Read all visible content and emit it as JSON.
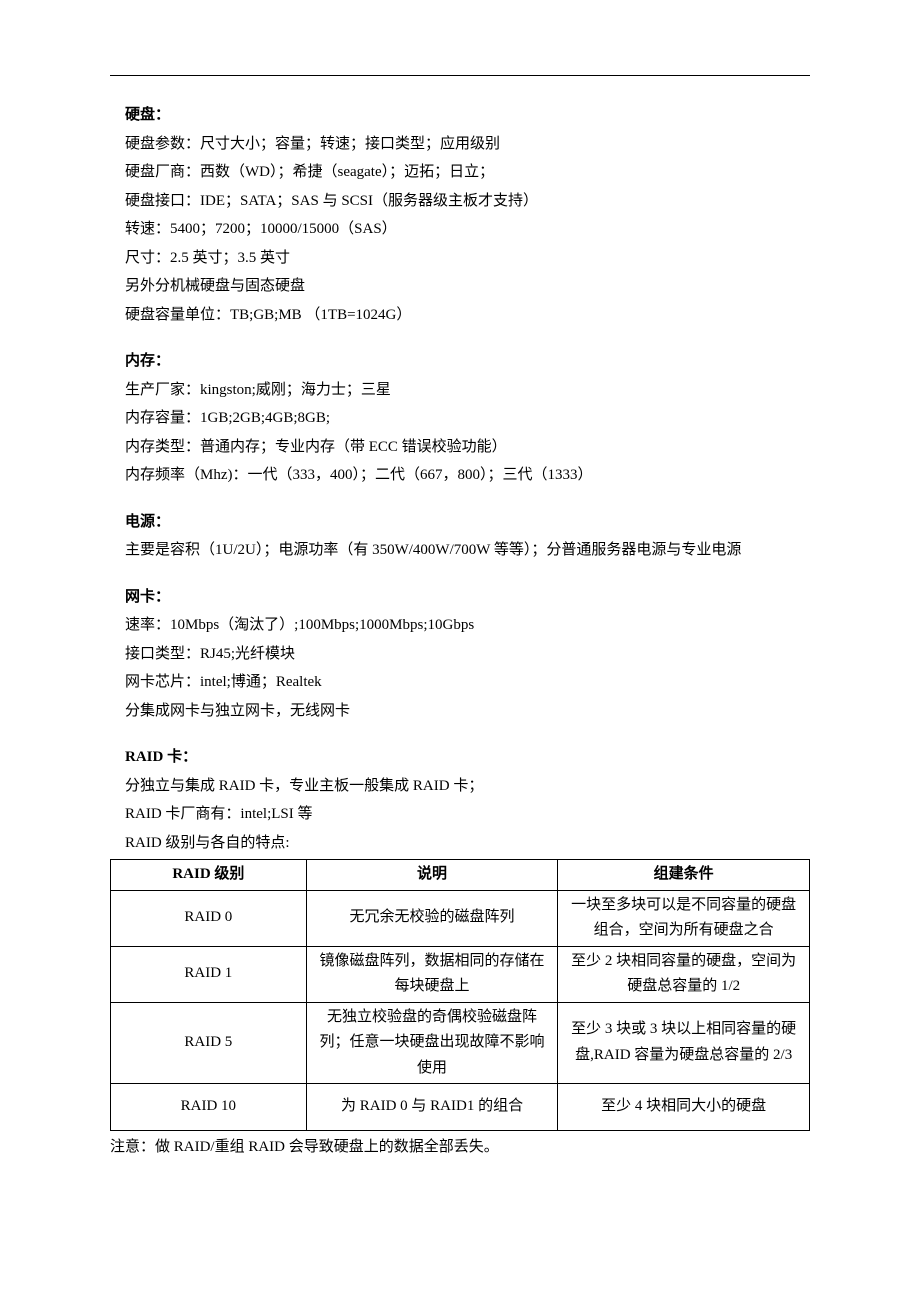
{
  "sections": {
    "disk": {
      "title": "硬盘：",
      "lines": [
        "硬盘参数：尺寸大小；容量；转速；接口类型；应用级别",
        "硬盘厂商：西数（WD）；希捷（seagate）；迈拓；日立；",
        "硬盘接口：IDE；SATA；SAS 与 SCSI（服务器级主板才支持）",
        "转速：5400；7200；10000/15000（SAS）",
        "尺寸：2.5 英寸；3.5 英寸",
        "另外分机械硬盘与固态硬盘",
        "硬盘容量单位：TB;GB;MB   （1TB=1024G）"
      ]
    },
    "memory": {
      "title": "内存：",
      "lines": [
        "生产厂家：kingston;威刚；海力士；三星",
        "内存容量：1GB;2GB;4GB;8GB;",
        "内存类型：普通内存；专业内存（带 ECC 错误校验功能）",
        "内存频率（Mhz)：一代（333，400）；二代（667，800）；三代（1333）"
      ]
    },
    "power": {
      "title": "电源：",
      "lines": [
        "主要是容积（1U/2U）；电源功率（有 350W/400W/700W 等等）；分普通服务器电源与专业电源"
      ]
    },
    "nic": {
      "title": "网卡：",
      "lines": [
        "速率：10Mbps（淘汰了）;100Mbps;1000Mbps;10Gbps",
        "接口类型：RJ45;光纤模块",
        "网卡芯片：intel;博通；Realtek",
        "分集成网卡与独立网卡，无线网卡"
      ]
    },
    "raid": {
      "title": "RAID 卡：",
      "lines": [
        "分独立与集成 RAID 卡，专业主板一般集成 RAID 卡；",
        "RAID 卡厂商有：intel;LSI 等",
        "RAID 级别与各自的特点:"
      ]
    }
  },
  "raid_table": {
    "headers": [
      "RAID 级别",
      "说明",
      "组建条件"
    ],
    "rows": [
      {
        "level": "RAID 0",
        "desc": "无冗余无校验的磁盘阵列",
        "cond": "一块至多块可以是不同容量的硬盘组合，空间为所有硬盘之合"
      },
      {
        "level": "RAID 1",
        "desc": "镜像磁盘阵列，数据相同的存储在每块硬盘上",
        "cond": "至少 2 块相同容量的硬盘，空间为硬盘总容量的 1/2"
      },
      {
        "level": "RAID 5",
        "desc": "无独立校验盘的奇偶校验磁盘阵列；任意一块硬盘出现故障不影响使用",
        "cond": "至少 3 块或 3 块以上相同容量的硬盘,RAID 容量为硬盘总容量的 2/3"
      },
      {
        "level": "RAID 10",
        "desc": "为 RAID 0 与 RAID1 的组合",
        "cond": "至少 4 块相同大小的硬盘"
      }
    ]
  },
  "note": "注意：做 RAID/重组 RAID 会导致硬盘上的数据全部丢失。"
}
